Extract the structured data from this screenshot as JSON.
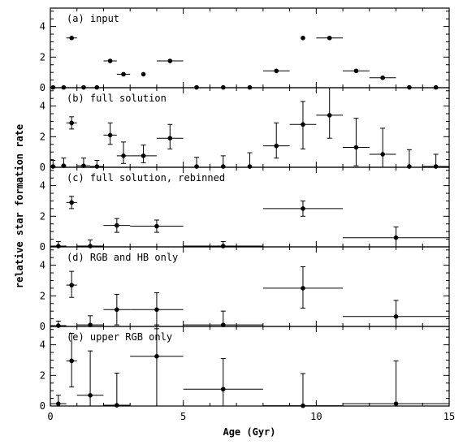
{
  "chart_data": {
    "type": "scatter",
    "x_axis": {
      "label": "Age (Gyr)",
      "range": [
        0,
        15
      ],
      "ticks": [
        "0",
        "5",
        "10",
        "15"
      ]
    },
    "y_axis": {
      "label": "relative star formation rate",
      "range": [
        0,
        5.2
      ],
      "ticks": [
        "0",
        "2",
        "4"
      ]
    },
    "grid": false,
    "panels": [
      {
        "title": "(a) input",
        "points": [
          {
            "x": 0.1,
            "y": 0.02
          },
          {
            "x": 0.5,
            "y": 0.02
          },
          {
            "x": 0.8,
            "y": 3.25,
            "xerr": [
              0.2,
              0.2
            ]
          },
          {
            "x": 1.25,
            "y": 0.02
          },
          {
            "x": 1.75,
            "y": 0.02
          },
          {
            "x": 2.25,
            "y": 1.75,
            "xerr": [
              0.25,
              0.25
            ]
          },
          {
            "x": 2.75,
            "y": 0.88,
            "xerr": [
              0.25,
              0.25
            ]
          },
          {
            "x": 3.5,
            "y": 0.88
          },
          {
            "x": 4.5,
            "y": 1.75,
            "xerr": [
              0.5,
              0.5
            ]
          },
          {
            "x": 5.5,
            "y": 0.02
          },
          {
            "x": 6.5,
            "y": 0.02
          },
          {
            "x": 7.5,
            "y": 0.02
          },
          {
            "x": 8.5,
            "y": 1.1,
            "xerr": [
              0.5,
              0.5
            ]
          },
          {
            "x": 9.5,
            "y": 3.25
          },
          {
            "x": 10.5,
            "y": 3.25,
            "xerr": [
              0.5,
              0.5
            ]
          },
          {
            "x": 11.5,
            "y": 1.1,
            "xerr": [
              0.5,
              0.5
            ]
          },
          {
            "x": 12.5,
            "y": 0.65,
            "xerr": [
              0.5,
              0.5
            ]
          },
          {
            "x": 13.5,
            "y": 0.02
          },
          {
            "x": 14.5,
            "y": 0.02
          }
        ]
      },
      {
        "title": "(b) full solution",
        "points": [
          {
            "x": 0.1,
            "y": 0.05,
            "xerr": [
              0.1,
              0.1
            ],
            "yerr": [
              0.05,
              0.4
            ]
          },
          {
            "x": 0.5,
            "y": 0.1,
            "xerr": [
              0.1,
              0.1
            ],
            "yerr": [
              0.1,
              0.5
            ]
          },
          {
            "x": 0.8,
            "y": 2.9,
            "xerr": [
              0.2,
              0.2
            ],
            "yerr": [
              0.4,
              0.4
            ]
          },
          {
            "x": 1.25,
            "y": 0.1,
            "xerr": [
              0.25,
              0.25
            ],
            "yerr": [
              0.1,
              0.5
            ]
          },
          {
            "x": 1.75,
            "y": 0.05,
            "xerr": [
              0.25,
              0.25
            ],
            "yerr": [
              0.05,
              0.4
            ]
          },
          {
            "x": 2.25,
            "y": 2.1,
            "xerr": [
              0.25,
              0.25
            ],
            "yerr": [
              0.6,
              0.8
            ]
          },
          {
            "x": 2.75,
            "y": 0.75,
            "xerr": [
              0.25,
              0.25
            ],
            "yerr": [
              0.5,
              0.9
            ]
          },
          {
            "x": 3.5,
            "y": 0.75,
            "xerr": [
              0.5,
              0.5
            ],
            "yerr": [
              0.45,
              0.7
            ]
          },
          {
            "x": 4.5,
            "y": 1.9,
            "xerr": [
              0.5,
              0.5
            ],
            "yerr": [
              0.7,
              0.9
            ]
          },
          {
            "x": 5.5,
            "y": 0.05,
            "yerr": [
              0.05,
              0.6
            ]
          },
          {
            "x": 6.5,
            "y": 0.05,
            "yerr": [
              0.05,
              0.7
            ]
          },
          {
            "x": 7.5,
            "y": 0.05,
            "yerr": [
              0.05,
              0.9
            ]
          },
          {
            "x": 8.5,
            "y": 1.4,
            "xerr": [
              0.5,
              0.5
            ],
            "yerr": [
              0.8,
              1.5
            ]
          },
          {
            "x": 9.5,
            "y": 2.8,
            "xerr": [
              0.5,
              0.5
            ],
            "yerr": [
              1.6,
              1.5
            ]
          },
          {
            "x": 10.5,
            "y": 3.4,
            "xerr": [
              0.5,
              0.5
            ],
            "yerr": [
              1.5,
              1.8
            ]
          },
          {
            "x": 11.5,
            "y": 1.3,
            "xerr": [
              0.5,
              0.5
            ],
            "yerr": [
              1.2,
              1.9
            ]
          },
          {
            "x": 12.5,
            "y": 0.85,
            "xerr": [
              0.5,
              0.5
            ],
            "yerr": [
              0.85,
              1.7
            ]
          },
          {
            "x": 13.5,
            "y": 0.05,
            "yerr": [
              0.05,
              1.1
            ]
          },
          {
            "x": 14.5,
            "y": 0.05,
            "xerr": [
              0.5,
              0.5
            ],
            "yerr": [
              0.05,
              0.8
            ]
          }
        ]
      },
      {
        "title": "(c) full solution, rebinned",
        "points": [
          {
            "x": 0.3,
            "y": 0.05,
            "xerr": [
              0.3,
              0.3
            ],
            "yerr": [
              0.05,
              0.3
            ]
          },
          {
            "x": 0.8,
            "y": 2.9,
            "xerr": [
              0.2,
              0.2
            ],
            "yerr": [
              0.4,
              0.4
            ]
          },
          {
            "x": 1.5,
            "y": 0.05,
            "xerr": [
              0.5,
              0.5
            ],
            "yerr": [
              0.05,
              0.4
            ]
          },
          {
            "x": 2.5,
            "y": 1.4,
            "xerr": [
              0.5,
              0.5
            ],
            "yerr": [
              0.45,
              0.45
            ]
          },
          {
            "x": 4.0,
            "y": 1.35,
            "xerr": [
              1.0,
              1.0
            ],
            "yerr": [
              0.4,
              0.4
            ]
          },
          {
            "x": 6.5,
            "y": 0.05,
            "xerr": [
              1.5,
              1.5
            ],
            "yerr": [
              0.05,
              0.3
            ]
          },
          {
            "x": 9.5,
            "y": 2.5,
            "xerr": [
              1.5,
              1.5
            ],
            "yerr": [
              0.5,
              0.5
            ]
          },
          {
            "x": 13.0,
            "y": 0.6,
            "xerr": [
              2.0,
              2.0
            ],
            "yerr": [
              0.6,
              0.7
            ]
          }
        ]
      },
      {
        "title": "(d) RGB and HB only",
        "points": [
          {
            "x": 0.3,
            "y": 0.05,
            "xerr": [
              0.3,
              0.3
            ],
            "yerr": [
              0.05,
              0.3
            ]
          },
          {
            "x": 0.8,
            "y": 2.7,
            "xerr": [
              0.2,
              0.2
            ],
            "yerr": [
              0.8,
              0.9
            ]
          },
          {
            "x": 1.5,
            "y": 0.1,
            "xerr": [
              0.5,
              0.5
            ],
            "yerr": [
              0.1,
              0.6
            ]
          },
          {
            "x": 2.5,
            "y": 1.1,
            "xerr": [
              0.5,
              0.5
            ],
            "yerr": [
              1.0,
              1.0
            ]
          },
          {
            "x": 4.0,
            "y": 1.1,
            "xerr": [
              1.0,
              1.0
            ],
            "yerr": [
              1.0,
              1.1
            ]
          },
          {
            "x": 6.5,
            "y": 0.1,
            "xerr": [
              1.5,
              1.5
            ],
            "yerr": [
              0.1,
              0.9
            ]
          },
          {
            "x": 9.5,
            "y": 2.5,
            "xerr": [
              1.5,
              1.5
            ],
            "yerr": [
              1.3,
              1.4
            ]
          },
          {
            "x": 13.0,
            "y": 0.65,
            "xerr": [
              2.0,
              2.0
            ],
            "yerr": [
              0.65,
              1.05
            ]
          }
        ]
      },
      {
        "title": "(e) upper RGB only",
        "points": [
          {
            "x": 0.3,
            "y": 0.15,
            "xerr": [
              0.3,
              0.3
            ],
            "yerr": [
              0.15,
              0.55
            ]
          },
          {
            "x": 0.8,
            "y": 2.95,
            "xerr": [
              0.2,
              0.2
            ],
            "yerr": [
              1.7,
              1.8
            ]
          },
          {
            "x": 1.5,
            "y": 0.7,
            "xerr": [
              0.5,
              0.5
            ],
            "yerr": [
              0.7,
              2.9
            ]
          },
          {
            "x": 2.5,
            "y": 0.05,
            "xerr": [
              0.5,
              0.5
            ],
            "yerr": [
              0.05,
              2.1
            ]
          },
          {
            "x": 4.0,
            "y": 3.25,
            "xerr": [
              1.0,
              1.0
            ],
            "yerr": [
              3.25,
              1.8
            ]
          },
          {
            "x": 6.5,
            "y": 1.1,
            "xerr": [
              1.5,
              1.5
            ],
            "yerr": [
              1.1,
              2.0
            ]
          },
          {
            "x": 9.5,
            "y": 0.02,
            "xerr": [
              1.5,
              1.5
            ],
            "yerr": [
              0.02,
              2.1
            ]
          },
          {
            "x": 13.0,
            "y": 0.15,
            "xerr": [
              2.0,
              2.0
            ],
            "yerr": [
              0.15,
              2.8
            ]
          }
        ]
      }
    ]
  }
}
